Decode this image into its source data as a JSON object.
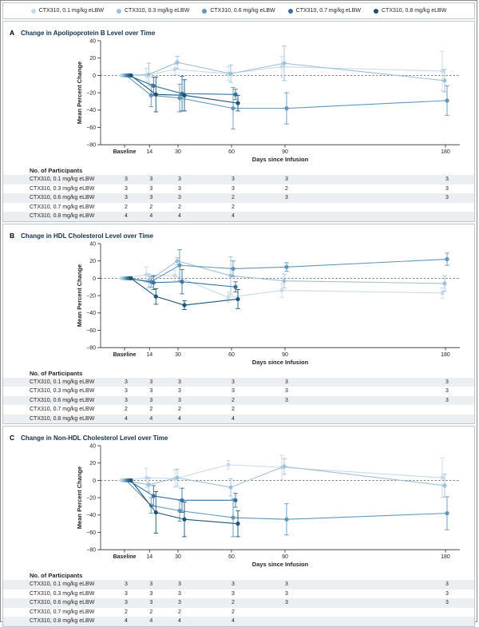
{
  "legend": {
    "items": [
      {
        "label": "CTX310, 0.1 mg/kg eLBW",
        "color": "#c8dbe9"
      },
      {
        "label": "CTX310, 0.3 mg/kg eLBW",
        "color": "#9fc1d8"
      },
      {
        "label": "CTX310, 0.6 mg/kg eLBW",
        "color": "#6096bd"
      },
      {
        "label": "CTX310, 0.7 mg/kg eLBW",
        "color": "#3672a2"
      },
      {
        "label": "CTX310, 0.8 mg/kg eLBW",
        "color": "#1b5377"
      }
    ]
  },
  "chart_data": [
    {
      "type": "line",
      "panel_letter": "A",
      "title": "Change in Apolipoprotein B Level over Time",
      "xlabel": "Days since Infusion",
      "ylabel": "Mean Percent Change",
      "ylim": [
        -80,
        40
      ],
      "yticks": [
        40,
        20,
        0,
        -20,
        -40,
        -60,
        -80
      ],
      "x_days": [
        0,
        14,
        30,
        60,
        90,
        180
      ],
      "x_ticklabels": [
        "Baseline",
        "14",
        "30",
        "60",
        "90",
        "180"
      ],
      "zero_line_dashed": true,
      "series": [
        {
          "name": "CTX310, 0.1 mg/kg eLBW",
          "values": [
            0,
            0,
            7,
            2,
            10,
            5
          ],
          "err": [
            0,
            8,
            6,
            8,
            12,
            23
          ]
        },
        {
          "name": "CTX310, 0.3 mg/kg eLBW",
          "values": [
            0,
            1,
            15,
            2,
            14,
            -6
          ],
          "err": [
            0,
            13,
            7,
            10,
            20,
            13
          ]
        },
        {
          "name": "CTX310, 0.6 mg/kg eLBW",
          "values": [
            0,
            -23,
            -26,
            -38,
            -38,
            -29
          ],
          "err": [
            0,
            13,
            16,
            24,
            18,
            17
          ]
        },
        {
          "name": "CTX310, 0.7 mg/kg eLBW",
          "values": [
            0,
            -12,
            -21,
            -22,
            null,
            null
          ],
          "err": [
            0,
            10,
            20,
            6,
            null,
            null
          ]
        },
        {
          "name": "CTX310, 0.8 mg/kg eLBW",
          "values": [
            0,
            -22,
            -23,
            -32,
            null,
            null
          ],
          "err": [
            0,
            20,
            18,
            9,
            null,
            null
          ]
        }
      ],
      "participants": {
        "header": "No. of Participants",
        "rows": [
          {
            "label": "CTX310, 0.1 mg/kg eLBW",
            "counts": [
              "3",
              "3",
              "3",
              "3",
              "3",
              "3"
            ]
          },
          {
            "label": "CTX310, 0.3 mg/kg eLBW",
            "counts": [
              "3",
              "3",
              "3",
              "3",
              "2",
              "3"
            ]
          },
          {
            "label": "CTX310, 0.6 mg/kg eLBW",
            "counts": [
              "3",
              "3",
              "3",
              "2",
              "3",
              "3"
            ]
          },
          {
            "label": "CTX310, 0.7 mg/kg eLBW",
            "counts": [
              "2",
              "2",
              "2",
              "2",
              "",
              ""
            ]
          },
          {
            "label": "CTX310, 0.8 mg/kg eLBW",
            "counts": [
              "4",
              "4",
              "4",
              "4",
              "",
              ""
            ]
          }
        ]
      }
    },
    {
      "type": "line",
      "panel_letter": "B",
      "title": "Change in HDL Cholesterol Level over Time",
      "xlabel": "Days since Infusion",
      "ylabel": "Mean Percent Change",
      "ylim": [
        -80,
        40
      ],
      "yticks": [
        40,
        20,
        0,
        -20,
        -40,
        -60,
        -80
      ],
      "x_days": [
        0,
        14,
        30,
        60,
        90,
        180
      ],
      "x_ticklabels": [
        "Baseline",
        "14",
        "30",
        "60",
        "90",
        "180"
      ],
      "zero_line_dashed": true,
      "series": [
        {
          "name": "CTX310, 0.1 mg/kg eLBW",
          "values": [
            0,
            4,
            3,
            -22,
            -14,
            -17
          ],
          "err": [
            0,
            9,
            6,
            6,
            8,
            6
          ]
        },
        {
          "name": "CTX310, 0.3 mg/kg eLBW",
          "values": [
            0,
            -3,
            20,
            3,
            -3,
            -6
          ],
          "err": [
            0,
            8,
            4,
            22,
            8,
            9
          ]
        },
        {
          "name": "CTX310, 0.6 mg/kg eLBW",
          "values": [
            0,
            -4,
            15,
            11,
            13,
            22
          ],
          "err": [
            0,
            6,
            18,
            9,
            5,
            7
          ]
        },
        {
          "name": "CTX310, 0.7 mg/kg eLBW",
          "values": [
            0,
            -5,
            -4,
            -10,
            null,
            null
          ],
          "err": [
            0,
            8,
            14,
            6,
            null,
            null
          ]
        },
        {
          "name": "CTX310, 0.8 mg/kg eLBW",
          "values": [
            0,
            -21,
            -31,
            -24,
            null,
            null
          ],
          "err": [
            0,
            9,
            5,
            11,
            null,
            null
          ]
        }
      ],
      "participants": {
        "header": "No. of Participants",
        "rows": [
          {
            "label": "CTX310, 0.1 mg/kg eLBW",
            "counts": [
              "3",
              "3",
              "3",
              "3",
              "3",
              "3"
            ]
          },
          {
            "label": "CTX310, 0.3 mg/kg eLBW",
            "counts": [
              "3",
              "3",
              "3",
              "3",
              "3",
              "3"
            ]
          },
          {
            "label": "CTX310, 0.6 mg/kg eLBW",
            "counts": [
              "3",
              "3",
              "3",
              "2",
              "3",
              "3"
            ]
          },
          {
            "label": "CTX310, 0.7 mg/kg eLBW",
            "counts": [
              "2",
              "2",
              "2",
              "2",
              "",
              ""
            ]
          },
          {
            "label": "CTX310, 0.8 mg/kg eLBW",
            "counts": [
              "4",
              "4",
              "4",
              "4",
              "",
              ""
            ]
          }
        ]
      }
    },
    {
      "type": "line",
      "panel_letter": "C",
      "title": "Change in Non-HDL Cholesterol Level over Time",
      "xlabel": "Days since Infusion",
      "ylabel": "Mean Percent Change",
      "ylim": [
        -80,
        40
      ],
      "yticks": [
        40,
        20,
        0,
        -20,
        -40,
        -60,
        -80
      ],
      "x_days": [
        0,
        14,
        30,
        60,
        90,
        180
      ],
      "x_ticklabels": [
        "Baseline",
        "14",
        "30",
        "60",
        "90",
        "180"
      ],
      "zero_line_dashed": true,
      "series": [
        {
          "name": "CTX310, 0.1 mg/kg eLBW",
          "values": [
            0,
            3,
            2,
            18,
            15,
            3
          ],
          "err": [
            0,
            11,
            10,
            5,
            14,
            23
          ]
        },
        {
          "name": "CTX310, 0.3 mg/kg eLBW",
          "values": [
            0,
            -5,
            3,
            -8,
            16,
            -6
          ],
          "err": [
            0,
            8,
            10,
            10,
            9,
            13
          ]
        },
        {
          "name": "CTX310, 0.6 mg/kg eLBW",
          "values": [
            0,
            -29,
            -35,
            -43,
            -45,
            -38
          ],
          "err": [
            0,
            9,
            12,
            22,
            18,
            19
          ]
        },
        {
          "name": "CTX310, 0.7 mg/kg eLBW",
          "values": [
            0,
            -18,
            -23,
            -23,
            null,
            null
          ],
          "err": [
            0,
            12,
            14,
            8,
            null,
            null
          ]
        },
        {
          "name": "CTX310, 0.8 mg/kg eLBW",
          "values": [
            0,
            -37,
            -45,
            -50,
            null,
            null
          ],
          "err": [
            0,
            24,
            20,
            15,
            null,
            null
          ]
        }
      ],
      "participants": {
        "header": "No. of Participants",
        "rows": [
          {
            "label": "CTX310, 0.1 mg/kg eLBW",
            "counts": [
              "3",
              "3",
              "3",
              "3",
              "3",
              "3"
            ]
          },
          {
            "label": "CTX310, 0.3 mg/kg eLBW",
            "counts": [
              "3",
              "3",
              "3",
              "3",
              "3",
              "3"
            ]
          },
          {
            "label": "CTX310, 0.6 mg/kg eLBW",
            "counts": [
              "3",
              "3",
              "3",
              "2",
              "3",
              "3"
            ]
          },
          {
            "label": "CTX310, 0.7 mg/kg eLBW",
            "counts": [
              "2",
              "2",
              "2",
              "2",
              "",
              ""
            ]
          },
          {
            "label": "CTX310, 0.8 mg/kg eLBW",
            "counts": [
              "4",
              "4",
              "4",
              "4",
              "",
              ""
            ]
          }
        ]
      }
    }
  ],
  "style": {
    "axis_color": "#2b2b2b",
    "text_color": "#231f20",
    "zero_line_color": "#555555",
    "stripe_color": "#eceff1",
    "panel_border_color": "#bcc7d1"
  }
}
